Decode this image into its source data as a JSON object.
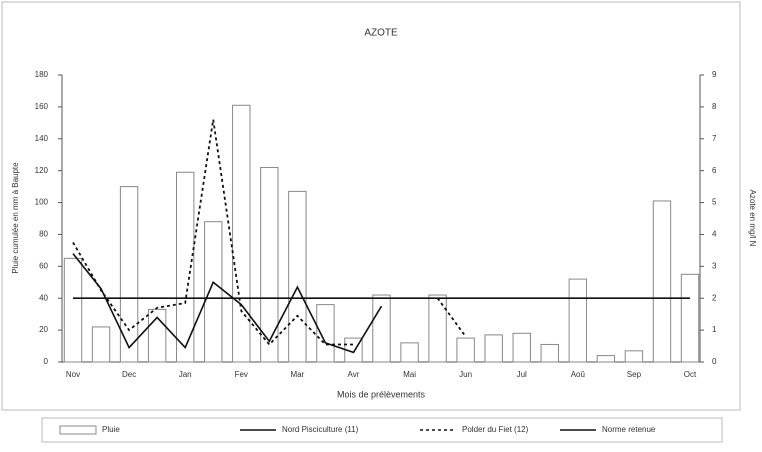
{
  "chart_data": {
    "type": "bar",
    "title": "AZOTE",
    "x_label": "Mois de prélèvements",
    "y_label": "Pluie cumulée en mm à Baupte",
    "y2_label": "Azote en mg/l N",
    "categories": [
      "Nov",
      null,
      "Dec",
      null,
      "Jan",
      null,
      "Fev",
      null,
      "Mar",
      null,
      "Avr",
      null,
      "Mai",
      null,
      "Jun",
      null,
      "Jul",
      null,
      "Aoû",
      null,
      "Sep",
      null,
      "Oct"
    ],
    "ylim": [
      0,
      180
    ],
    "yticks": [
      0,
      20,
      40,
      60,
      80,
      100,
      120,
      140,
      160,
      180
    ],
    "y2lim": [
      0,
      9
    ],
    "y2ticks": [
      0,
      1,
      2,
      3,
      4,
      5,
      6,
      7,
      8,
      9
    ],
    "series": [
      {
        "name": "Pluie",
        "type": "bar",
        "color": "#888888",
        "values": [
          65,
          22,
          110,
          33,
          119,
          88,
          161,
          122,
          107,
          36,
          15,
          42,
          12,
          42,
          15,
          17,
          18,
          11,
          52,
          4,
          7,
          101,
          55
        ]
      },
      {
        "name": "Nord Pisciculture (11)",
        "type": "line",
        "axis": "y2",
        "color": "#111111",
        "dash": false,
        "values": [
          3.4,
          2.3,
          0.45,
          1.4,
          0.45,
          2.5,
          1.8,
          0.65,
          2.35,
          0.6,
          0.3,
          1.75,
          null,
          null,
          null,
          null,
          null,
          null,
          null,
          null,
          null,
          null,
          null
        ]
      },
      {
        "name": "Polder du Fiet (12)",
        "type": "line",
        "axis": "y2",
        "color": "#111111",
        "dash": true,
        "values": [
          3.75,
          2.25,
          1.0,
          1.7,
          1.85,
          7.6,
          1.6,
          0.55,
          1.45,
          0.55,
          0.55,
          null,
          null,
          2.0,
          0.8,
          null,
          null,
          null,
          null,
          null,
          null,
          null,
          null
        ]
      },
      {
        "name": "Norme retenue",
        "type": "line",
        "axis": "y2",
        "color": "#111111",
        "dash": false,
        "values": [
          2,
          2,
          2,
          2,
          2,
          2,
          2,
          2,
          2,
          2,
          2,
          2,
          2,
          2,
          2,
          2,
          2,
          2,
          2,
          2,
          2,
          2,
          2
        ]
      }
    ]
  }
}
